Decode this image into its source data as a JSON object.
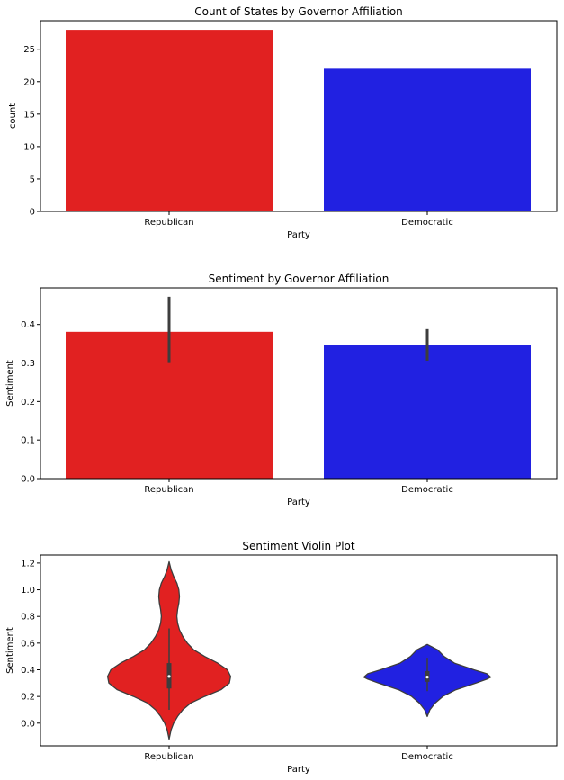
{
  "chart_data": [
    {
      "type": "bar",
      "title": "Count of States by Governor Affiliation",
      "xlabel": "Party",
      "ylabel": "count",
      "categories": [
        "Republican",
        "Democratic"
      ],
      "values": [
        28,
        22
      ],
      "colors": [
        "#e12121",
        "#2121e1"
      ],
      "ylim": [
        0,
        29.4
      ],
      "yticks": [
        0,
        5,
        10,
        15,
        20,
        25
      ],
      "ytick_labels": [
        "0",
        "5",
        "10",
        "15",
        "20",
        "25"
      ],
      "grid": false
    },
    {
      "type": "bar",
      "title": "Sentiment by Governor Affiliation",
      "xlabel": "Party",
      "ylabel": "Sentiment",
      "categories": [
        "Republican",
        "Democratic"
      ],
      "values": [
        0.381,
        0.347
      ],
      "error_bars": [
        [
          0.302,
          0.472
        ],
        [
          0.306,
          0.388
        ]
      ],
      "colors": [
        "#e12121",
        "#2121e1"
      ],
      "ylim": [
        0,
        0.495
      ],
      "yticks": [
        0,
        0.1,
        0.2,
        0.3,
        0.4
      ],
      "ytick_labels": [
        "0.0",
        "0.1",
        "0.2",
        "0.3",
        "0.4"
      ],
      "grid": false
    },
    {
      "type": "violin",
      "title": "Sentiment Violin Plot",
      "xlabel": "Party",
      "ylabel": "Sentiment",
      "categories": [
        "Republican",
        "Democratic"
      ],
      "colors": [
        "#e12121",
        "#2121e1"
      ],
      "ylim": [
        -0.17,
        1.26
      ],
      "yticks": [
        0,
        0.2,
        0.4,
        0.6,
        0.8,
        1.0,
        1.2
      ],
      "ytick_labels": [
        "0.0",
        "0.2",
        "0.4",
        "0.6",
        "0.8",
        "1.0",
        "1.2"
      ],
      "violins": [
        {
          "min": -0.12,
          "max": 1.21,
          "whisker": [
            0.1,
            0.71
          ],
          "box": [
            0.26,
            0.45
          ],
          "median": 0.35,
          "density": [
            [
              -0.12,
              0.0
            ],
            [
              -0.05,
              0.03
            ],
            [
              0.0,
              0.07
            ],
            [
              0.05,
              0.13
            ],
            [
              0.1,
              0.21
            ],
            [
              0.15,
              0.33
            ],
            [
              0.2,
              0.55
            ],
            [
              0.25,
              0.8
            ],
            [
              0.3,
              0.93
            ],
            [
              0.35,
              0.95
            ],
            [
              0.4,
              0.9
            ],
            [
              0.45,
              0.75
            ],
            [
              0.5,
              0.55
            ],
            [
              0.55,
              0.38
            ],
            [
              0.6,
              0.28
            ],
            [
              0.65,
              0.21
            ],
            [
              0.7,
              0.16
            ],
            [
              0.75,
              0.13
            ],
            [
              0.8,
              0.12
            ],
            [
              0.85,
              0.13
            ],
            [
              0.9,
              0.15
            ],
            [
              0.95,
              0.16
            ],
            [
              1.0,
              0.15
            ],
            [
              1.05,
              0.12
            ],
            [
              1.1,
              0.07
            ],
            [
              1.15,
              0.03
            ],
            [
              1.21,
              0.0
            ]
          ]
        },
        {
          "min": 0.05,
          "max": 0.59,
          "whisker": [
            0.24,
            0.49
          ],
          "box": [
            0.31,
            0.39
          ],
          "median": 0.345,
          "density": [
            [
              0.05,
              0.0
            ],
            [
              0.1,
              0.04
            ],
            [
              0.15,
              0.12
            ],
            [
              0.2,
              0.24
            ],
            [
              0.25,
              0.44
            ],
            [
              0.3,
              0.75
            ],
            [
              0.33,
              0.92
            ],
            [
              0.345,
              0.98
            ],
            [
              0.37,
              0.92
            ],
            [
              0.4,
              0.72
            ],
            [
              0.45,
              0.42
            ],
            [
              0.5,
              0.26
            ],
            [
              0.55,
              0.16
            ],
            [
              0.57,
              0.08
            ],
            [
              0.59,
              0.0
            ]
          ]
        }
      ]
    }
  ]
}
